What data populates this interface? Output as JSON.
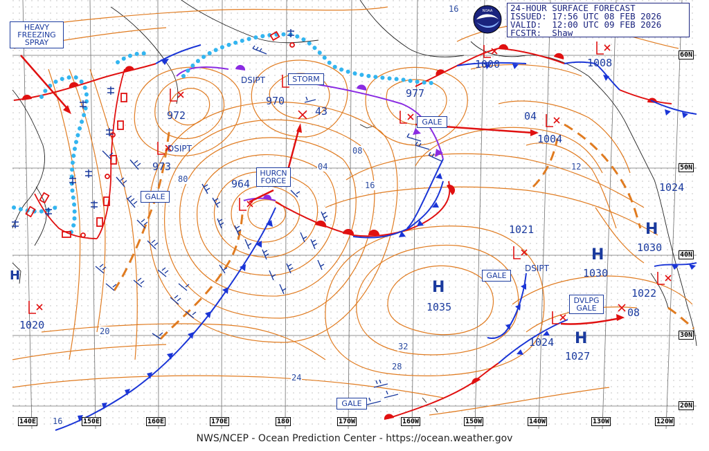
{
  "header": {
    "line1": "24-HOUR SURFACE FORECAST",
    "line2": "ISSUED: 17:56 UTC 08 FEB 2026",
    "line3": "VALID:  12:00 UTC 09 FEB 2026",
    "line4": "FCSTR:  Shaw"
  },
  "logo_text": "NOAA",
  "footer": "NWS/NCEP - Ocean Prediction Center - https://ocean.weather.gov",
  "colors": {
    "isobar": "#e07b20",
    "front_cold": "#1a35d6",
    "front_warm": "#e01010",
    "occluded": "#8a2be2",
    "ice": "#33b5f0",
    "grid": "#6e6e6e",
    "lows": "#d22222",
    "highs": "#1a3a9e"
  },
  "warnings": {
    "heavy_freezing_spray": "HEAVY FREEZING SPRAY",
    "storm": "STORM",
    "hurcn_force": "HURCN FORCE",
    "gale_1": "GALE",
    "gale_2": "GALE",
    "gale_3": "GALE",
    "gale_4": "GALE",
    "dvlpg_gale": "DVLPG GALE"
  },
  "pressure_centers": {
    "low_972": "972",
    "low_973": "973",
    "low_970": "970",
    "low_964": "964",
    "low_977": "977",
    "low_1000": "1000",
    "low_1008": "1008",
    "low_1004": "1004",
    "low_1021": "1021",
    "low_1020": "1020",
    "low_1022": "1022",
    "low_1024_east": "1024",
    "low_1024_south": "1024",
    "high_1035": "1035",
    "high_1030a": "1030",
    "high_1030b": "1030",
    "high_1027": "1027"
  },
  "dsipt_labels": {
    "dsipt_1": "DSIPT",
    "dsipt_2": "DSIPT",
    "dsipt_3": "DSIPT"
  },
  "motion_labels": {
    "speed_43": "43",
    "speed_04": "04",
    "speed_08": "08"
  },
  "isobar_labels": {
    "iso_16_top": "16",
    "iso_08": "08",
    "iso_04": "04",
    "iso_16": "16",
    "iso_12": "12",
    "iso_80": "80",
    "iso_20": "20",
    "iso_32": "32",
    "iso_28": "28",
    "iso_24": "24",
    "iso_16_bottom": "16"
  },
  "latitude_labels": [
    "60N",
    "50N",
    "40N",
    "30N",
    "20N"
  ],
  "longitude_labels": [
    "140E",
    "150E",
    "160E",
    "170E",
    "180",
    "170W",
    "160W",
    "150W",
    "140W",
    "130W",
    "120W"
  ]
}
